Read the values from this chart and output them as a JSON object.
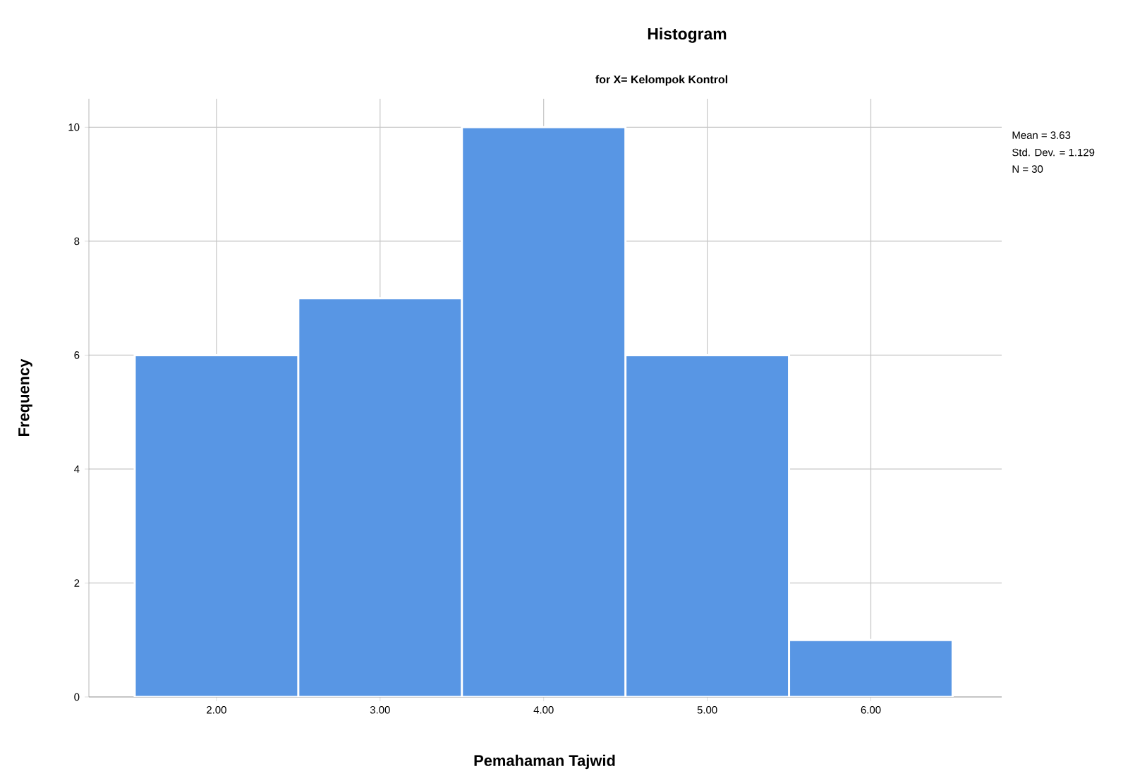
{
  "chart_data": {
    "type": "histogram",
    "title": "Histogram",
    "subtitle": "for X= Kelompok Kontrol",
    "xlabel": "Pemahaman Tajwid",
    "ylabel": "Frequency",
    "bins": [
      1.5,
      2.5,
      3.5,
      4.5,
      5.5,
      6.5
    ],
    "values": [
      6,
      7,
      10,
      6,
      1
    ],
    "color": "#5896e4",
    "xlim": [
      1.22,
      6.8
    ],
    "ylim": [
      0,
      10.5
    ],
    "xticks": [
      {
        "value": 2,
        "label": "2.00"
      },
      {
        "value": 3,
        "label": "3.00"
      },
      {
        "value": 4,
        "label": "4.00"
      },
      {
        "value": 5,
        "label": "5.00"
      },
      {
        "value": 6,
        "label": "6.00"
      }
    ],
    "yticks": [
      0,
      2,
      4,
      6,
      8,
      10
    ],
    "grid": true,
    "annotations": [
      "Mean = 3.63",
      "Std. Dev. = 1.129",
      "N = 30"
    ]
  }
}
